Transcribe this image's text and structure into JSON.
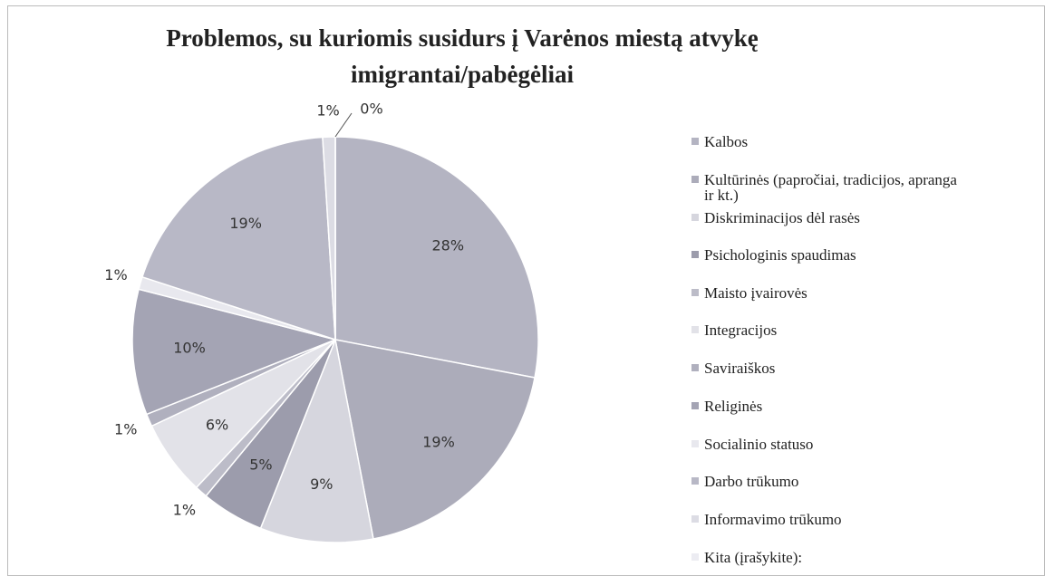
{
  "chart_data": {
    "type": "pie",
    "title": "Problemos, su kuriomis susidurs į Varėnos miestą atvykę imigrantai/pabėgėliai",
    "categories": [
      "Kalbos",
      "Kultūrinės (papročiai, tradicijos, apranga ir kt.)",
      "Diskriminacijos dėl rasės",
      "Psichologinis spaudimas",
      "Maisto įvairovės",
      "Integracijos",
      "Saviraiškos",
      "Religinės",
      "Socialinio statuso",
      "Darbo trūkumo",
      "Informavimo trūkumo",
      "Kita (įrašykite):"
    ],
    "values": [
      28,
      19,
      9,
      5,
      1,
      6,
      1,
      10,
      1,
      19,
      1,
      0
    ],
    "value_labels": [
      "28%",
      "19%",
      "9%",
      "5%",
      "1%",
      "6%",
      "1%",
      "10%",
      "1%",
      "19%",
      "1%",
      "0%"
    ],
    "colors": [
      "#b4b4c2",
      "#acacba",
      "#d6d6de",
      "#9c9cac",
      "#bcbcc8",
      "#e2e2e8",
      "#b0b0be",
      "#a4a4b4",
      "#e8e8ee",
      "#b8b8c6",
      "#dcdce4",
      "#ececf2"
    ],
    "legend": "right"
  }
}
